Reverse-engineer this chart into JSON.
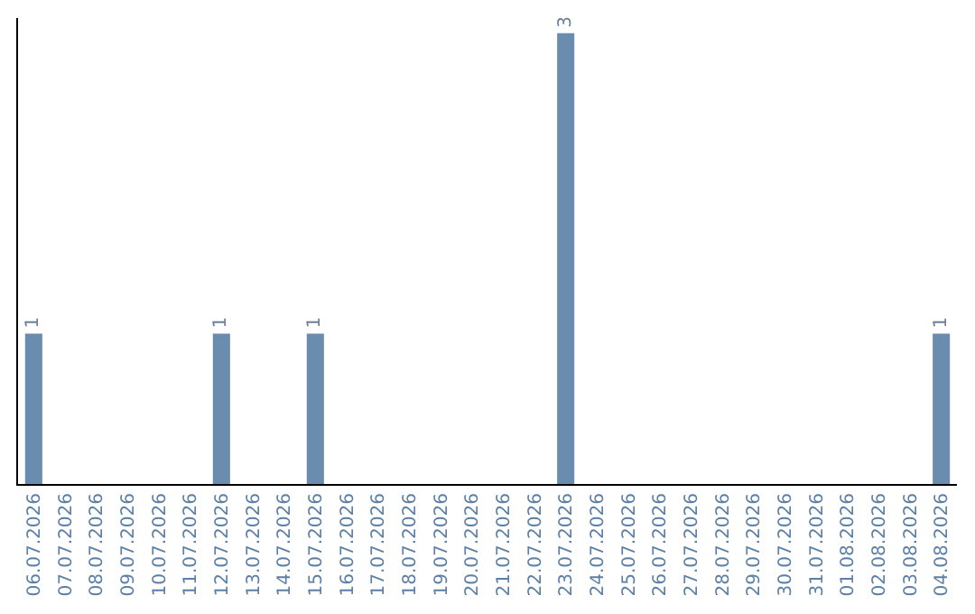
{
  "chart_data": {
    "type": "bar",
    "categories": [
      "06.07.2026",
      "07.07.2026",
      "08.07.2026",
      "09.07.2026",
      "10.07.2026",
      "11.07.2026",
      "12.07.2026",
      "13.07.2026",
      "14.07.2026",
      "15.07.2026",
      "16.07.2026",
      "17.07.2026",
      "18.07.2026",
      "19.07.2026",
      "20.07.2026",
      "21.07.2026",
      "22.07.2026",
      "23.07.2026",
      "24.07.2026",
      "25.07.2026",
      "26.07.2026",
      "27.07.2026",
      "28.07.2026",
      "29.07.2026",
      "30.07.2026",
      "31.07.2026",
      "01.08.2026",
      "02.08.2026",
      "03.08.2026",
      "04.08.2026"
    ],
    "values": [
      1,
      0,
      0,
      0,
      0,
      0,
      1,
      0,
      0,
      1,
      0,
      0,
      0,
      0,
      0,
      0,
      0,
      3,
      0,
      0,
      0,
      0,
      0,
      0,
      0,
      0,
      0,
      0,
      0,
      1
    ],
    "value_labels": [
      "1",
      null,
      null,
      null,
      null,
      null,
      "1",
      null,
      null,
      "1",
      null,
      null,
      null,
      null,
      null,
      null,
      null,
      "3",
      null,
      null,
      null,
      null,
      null,
      null,
      null,
      null,
      null,
      null,
      null,
      "1"
    ],
    "color": "#6a8caf",
    "ylim": [
      0,
      3.1
    ],
    "tick_labels": "x"
  }
}
